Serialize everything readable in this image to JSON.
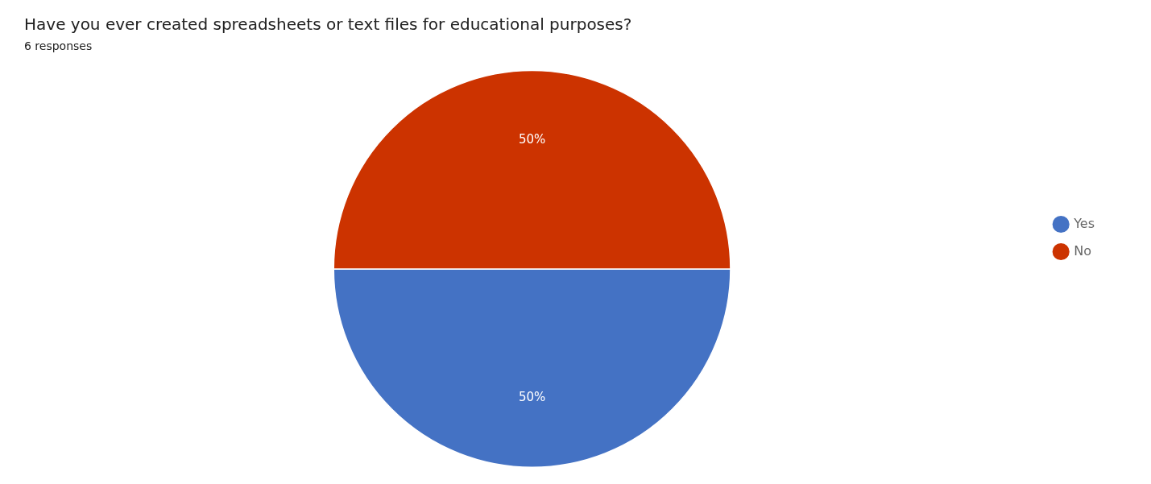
{
  "chart_data": {
    "type": "pie",
    "title": "Have you ever created spreadsheets or text files for educational purposes?",
    "subtitle": "6 responses",
    "categories": [
      "Yes",
      "No"
    ],
    "values": [
      50,
      50
    ],
    "value_labels": [
      "50%",
      "50%"
    ],
    "colors": [
      "#4472C4",
      "#CC3300"
    ],
    "data_labels": true,
    "legend": "right"
  }
}
